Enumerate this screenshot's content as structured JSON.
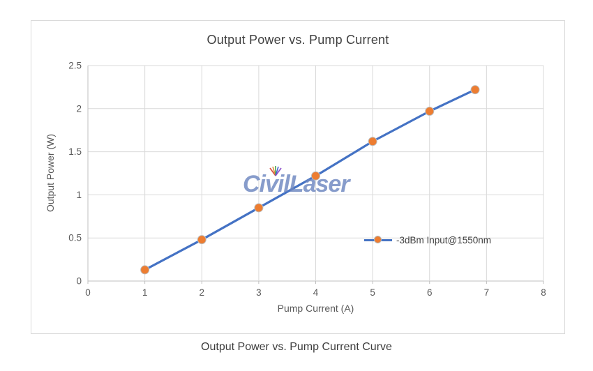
{
  "page": {
    "caption": "Output Power vs. Pump Current Curve"
  },
  "watermark": {
    "text": "CivilLaser",
    "color": "#6D86BF"
  },
  "chart_data": {
    "type": "line",
    "title": "Output Power vs. Pump Current",
    "xlabel": "Pump Current (A)",
    "ylabel": "Output Power (W)",
    "xlim": [
      0,
      8
    ],
    "ylim": [
      0,
      2.5
    ],
    "xticks": [
      0,
      1,
      2,
      3,
      4,
      5,
      6,
      7,
      8
    ],
    "yticks": [
      0,
      0.5,
      1,
      1.5,
      2,
      2.5
    ],
    "grid": true,
    "legend_position": "inside lower-right",
    "series": [
      {
        "name": "-3dBm Input@1550nm",
        "x": [
          1,
          2,
          3,
          4,
          5,
          6,
          6.8
        ],
        "y": [
          0.13,
          0.48,
          0.85,
          1.22,
          1.62,
          1.97,
          2.22
        ],
        "line_color": "#4472C4",
        "marker_color": "#ED7D31",
        "marker_outline": "#BDBDBD"
      }
    ],
    "colors": {
      "grid": "#D9D9D9",
      "axis": "#BFBFBF",
      "tick_label": "#595959",
      "title": "#404040"
    }
  }
}
